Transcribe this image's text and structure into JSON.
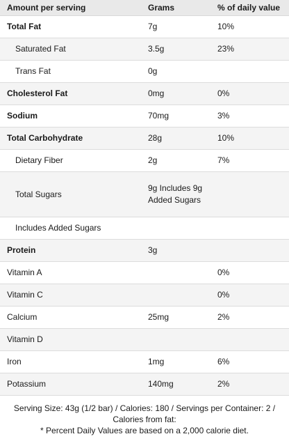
{
  "header": {
    "nutrient": "Amount per serving",
    "grams": "Grams",
    "daily": "% of daily value"
  },
  "rows": [
    {
      "name": "Total Fat",
      "grams": "7g",
      "daily": "10%",
      "bold": true,
      "indent": false
    },
    {
      "name": "Saturated Fat",
      "grams": "3.5g",
      "daily": "23%",
      "bold": false,
      "indent": true
    },
    {
      "name": "Trans Fat",
      "grams": "0g",
      "daily": "",
      "bold": false,
      "indent": true
    },
    {
      "name": "Cholesterol Fat",
      "grams": "0mg",
      "daily": "0%",
      "bold": true,
      "indent": false
    },
    {
      "name": "Sodium",
      "grams": "70mg",
      "daily": "3%",
      "bold": true,
      "indent": false
    },
    {
      "name": "Total Carbohydrate",
      "grams": "28g",
      "daily": "10%",
      "bold": true,
      "indent": false
    },
    {
      "name": "Dietary Fiber",
      "grams": "2g",
      "daily": "7%",
      "bold": false,
      "indent": true
    },
    {
      "name": "Total Sugars",
      "grams": "9g Includes 9g Added Sugars",
      "daily": "",
      "bold": false,
      "indent": true,
      "tall": true
    },
    {
      "name": "Includes Added Sugars",
      "grams": "",
      "daily": "",
      "bold": false,
      "indent": true
    },
    {
      "name": "Protein",
      "grams": "3g",
      "daily": "",
      "bold": true,
      "indent": false
    },
    {
      "name": "Vitamin A",
      "grams": "",
      "daily": "0%",
      "bold": false,
      "indent": false
    },
    {
      "name": "Vitamin C",
      "grams": "",
      "daily": "0%",
      "bold": false,
      "indent": false
    },
    {
      "name": "Calcium",
      "grams": "25mg",
      "daily": "2%",
      "bold": false,
      "indent": false
    },
    {
      "name": "Vitamin D",
      "grams": "",
      "daily": "",
      "bold": false,
      "indent": false
    },
    {
      "name": "Iron",
      "grams": "1mg",
      "daily": "6%",
      "bold": false,
      "indent": false
    },
    {
      "name": "Potassium",
      "grams": "140mg",
      "daily": "2%",
      "bold": false,
      "indent": false
    }
  ],
  "footer": {
    "serving_line": "Serving Size: 43g (1/2 bar) / Calories: 180 / Servings per Container: 2 / Calories from fat:",
    "disclaimer": "* Percent Daily Values are based on a 2,000 calorie diet."
  }
}
